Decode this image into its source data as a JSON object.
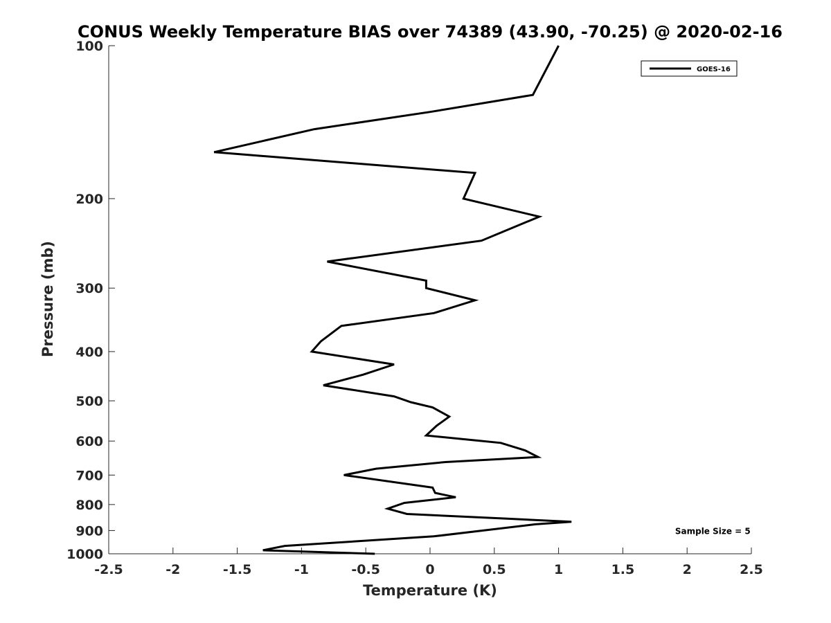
{
  "chart_data": {
    "type": "line",
    "title": "CONUS Weekly Temperature BIAS over 74389 (43.90, -70.25) @ 2020-02-16",
    "xlabel": "Temperature (K)",
    "ylabel": "Pressure (mb)",
    "xlim": [
      -2.5,
      2.5
    ],
    "ylim": [
      1000,
      100
    ],
    "yscale": "log",
    "y_reversed": true,
    "grid": false,
    "legend_position": "top-right",
    "x_ticks": [
      -2.5,
      -2,
      -1.5,
      -1,
      -0.5,
      0,
      0.5,
      1,
      1.5,
      2,
      2.5
    ],
    "x_tick_labels": [
      "-2.5",
      "-2",
      "-1.5",
      "-1",
      "-0.5",
      "0",
      "0.5",
      "1",
      "1.5",
      "2",
      "2.5"
    ],
    "y_ticks": [
      100,
      200,
      300,
      400,
      500,
      600,
      700,
      800,
      900,
      1000
    ],
    "y_tick_labels": [
      "100",
      "200",
      "300",
      "400",
      "500",
      "600",
      "700",
      "800",
      "900",
      "1000"
    ],
    "series": [
      {
        "name": "GOES-16",
        "color": "#000000",
        "points": [
          {
            "x": 1.0,
            "p": 100
          },
          {
            "x": 0.8,
            "p": 125
          },
          {
            "x": 0.0,
            "p": 135
          },
          {
            "x": -0.9,
            "p": 146
          },
          {
            "x": -1.68,
            "p": 162
          },
          {
            "x": 0.35,
            "p": 178
          },
          {
            "x": 0.26,
            "p": 200
          },
          {
            "x": 0.85,
            "p": 217
          },
          {
            "x": 0.4,
            "p": 242
          },
          {
            "x": -0.8,
            "p": 266
          },
          {
            "x": -0.03,
            "p": 290
          },
          {
            "x": -0.03,
            "p": 300
          },
          {
            "x": 0.35,
            "p": 317
          },
          {
            "x": 0.03,
            "p": 336
          },
          {
            "x": -0.69,
            "p": 356
          },
          {
            "x": -0.85,
            "p": 382
          },
          {
            "x": -0.92,
            "p": 400
          },
          {
            "x": -0.28,
            "p": 424
          },
          {
            "x": -0.52,
            "p": 444
          },
          {
            "x": -0.83,
            "p": 466
          },
          {
            "x": -0.28,
            "p": 490
          },
          {
            "x": -0.15,
            "p": 503
          },
          {
            "x": 0.02,
            "p": 515
          },
          {
            "x": 0.15,
            "p": 537
          },
          {
            "x": 0.05,
            "p": 560
          },
          {
            "x": -0.03,
            "p": 585
          },
          {
            "x": 0.55,
            "p": 605
          },
          {
            "x": 0.74,
            "p": 626
          },
          {
            "x": 0.84,
            "p": 645
          },
          {
            "x": 0.12,
            "p": 660
          },
          {
            "x": -0.42,
            "p": 680
          },
          {
            "x": -0.67,
            "p": 700
          },
          {
            "x": 0.02,
            "p": 741
          },
          {
            "x": 0.04,
            "p": 759
          },
          {
            "x": 0.2,
            "p": 774
          },
          {
            "x": -0.2,
            "p": 794
          },
          {
            "x": -0.33,
            "p": 815
          },
          {
            "x": -0.18,
            "p": 835
          },
          {
            "x": 0.6,
            "p": 853
          },
          {
            "x": 1.1,
            "p": 865
          },
          {
            "x": 0.82,
            "p": 875
          },
          {
            "x": 0.03,
            "p": 924
          },
          {
            "x": -1.13,
            "p": 965
          },
          {
            "x": -1.3,
            "p": 984
          },
          {
            "x": -0.43,
            "p": 1000
          }
        ]
      }
    ],
    "annotations": [
      {
        "text": "Sample Size = 5",
        "x": 2.2,
        "p": 900
      }
    ]
  }
}
